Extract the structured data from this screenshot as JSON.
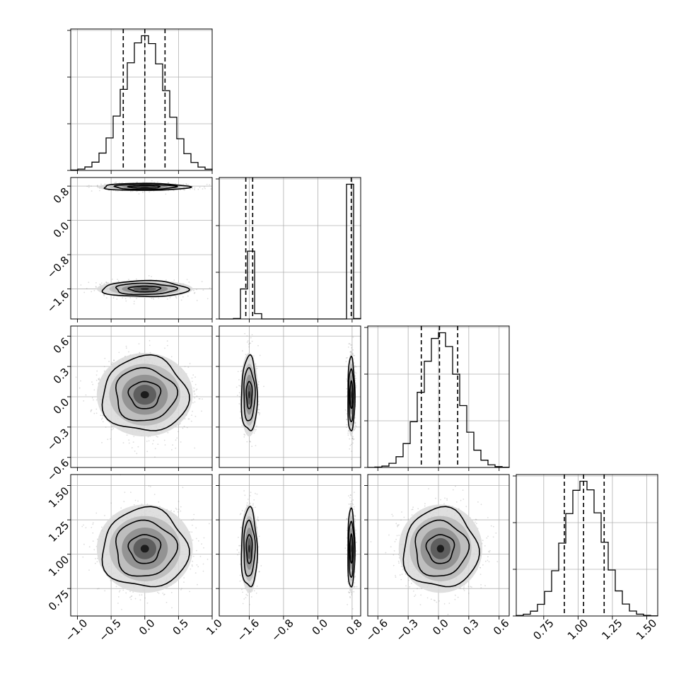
{
  "chart_data": {
    "type": "corner",
    "n_params": 4,
    "params": [
      {
        "index": 0,
        "range": [
          -1.1,
          1.0
        ],
        "ticks": [
          -1.0,
          -0.5,
          0.0,
          0.5,
          1.0
        ],
        "tick_labels": [
          "−1.0",
          "−0.5",
          "0.0",
          "0.5",
          "1.0"
        ],
        "quantiles": [
          -0.32,
          0.0,
          0.3
        ],
        "modes": [
          {
            "mean": 0.0,
            "sd": 0.31,
            "weight": 1.0
          }
        ]
      },
      {
        "index": 1,
        "range": [
          -2.3,
          1.0
        ],
        "ticks": [
          -1.6,
          -0.8,
          0.0,
          0.8
        ],
        "tick_labels": [
          "−1.6",
          "−0.8",
          "0.0",
          "0.8"
        ],
        "quantiles": [
          -1.68,
          -1.52,
          0.78
        ],
        "modes": [
          {
            "mean": -1.6,
            "sd": 0.09,
            "weight": 0.5
          },
          {
            "mean": 0.78,
            "sd": 0.04,
            "weight": 0.5
          }
        ]
      },
      {
        "index": 2,
        "range": [
          -0.7,
          0.7
        ],
        "ticks": [
          -0.6,
          -0.3,
          0.0,
          0.3,
          0.6
        ],
        "tick_labels": [
          "−0.6",
          "−0.3",
          "0.0",
          "0.3",
          "0.6"
        ],
        "quantiles": [
          -0.17,
          0.01,
          0.19
        ],
        "modes": [
          {
            "mean": 0.02,
            "sd": 0.18,
            "weight": 1.0
          }
        ]
      },
      {
        "index": 3,
        "range": [
          0.55,
          1.58
        ],
        "ticks": [
          0.75,
          1.0,
          1.25,
          1.5
        ],
        "tick_labels": [
          "0.75",
          "1.00",
          "1.25",
          "1.50"
        ],
        "quantiles": [
          0.9,
          1.04,
          1.19
        ],
        "modes": [
          {
            "mean": 1.04,
            "sd": 0.14,
            "weight": 1.0
          }
        ]
      }
    ],
    "histogram_bins": 20,
    "contour_levels": 3,
    "grid": true,
    "colors": {
      "line": "#000000",
      "grid": "#b0b0b0",
      "points": "#808080"
    }
  }
}
